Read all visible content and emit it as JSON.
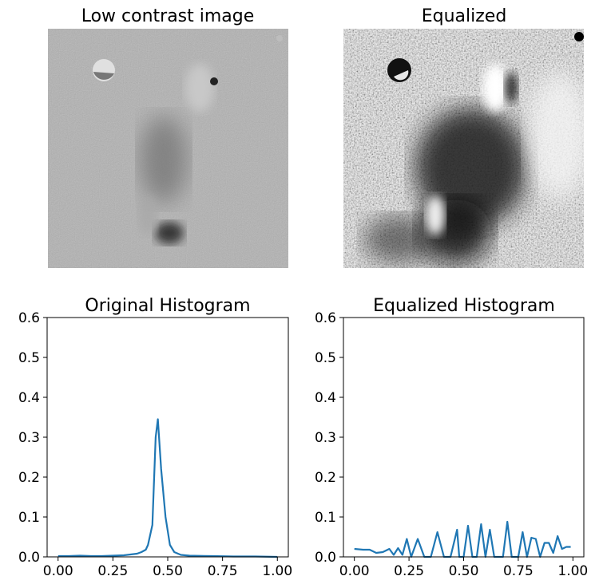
{
  "images": [
    {
      "title": "Low contrast image"
    },
    {
      "title": "Equalized"
    }
  ],
  "colors": {
    "line": "#1f77b4",
    "axis": "#000000",
    "background": "#ffffff"
  },
  "chart_data": [
    {
      "type": "line",
      "title": "Original Histogram",
      "xlabel": "",
      "ylabel": "",
      "xlim": [
        0.0,
        1.0
      ],
      "ylim": [
        0.0,
        0.6
      ],
      "xticks": [
        "0.00",
        "0.25",
        "0.50",
        "0.75",
        "1.00"
      ],
      "yticks": [
        "0.0",
        "0.1",
        "0.2",
        "0.3",
        "0.4",
        "0.5",
        "0.6"
      ],
      "grid": false,
      "x": [
        0.0,
        0.05,
        0.1,
        0.15,
        0.2,
        0.25,
        0.3,
        0.33,
        0.36,
        0.38,
        0.4,
        0.41,
        0.43,
        0.445,
        0.455,
        0.47,
        0.49,
        0.51,
        0.53,
        0.56,
        0.6,
        0.7,
        0.8,
        0.9,
        1.0
      ],
      "values": [
        0.002,
        0.002,
        0.003,
        0.002,
        0.002,
        0.003,
        0.004,
        0.006,
        0.008,
        0.012,
        0.018,
        0.03,
        0.08,
        0.3,
        0.345,
        0.22,
        0.1,
        0.03,
        0.012,
        0.005,
        0.003,
        0.002,
        0.001,
        0.001,
        0.0
      ]
    },
    {
      "type": "line",
      "title": "Equalized Histogram",
      "xlabel": "",
      "ylabel": "",
      "xlim": [
        0.0,
        1.0
      ],
      "ylim": [
        0.0,
        0.6
      ],
      "xticks": [
        "0.00",
        "0.25",
        "0.50",
        "0.75",
        "1.00"
      ],
      "yticks": [
        "0.0",
        "0.1",
        "0.2",
        "0.3",
        "0.4",
        "0.5",
        "0.6"
      ],
      "grid": false,
      "x": [
        0.0,
        0.04,
        0.07,
        0.1,
        0.13,
        0.16,
        0.18,
        0.2,
        0.22,
        0.24,
        0.26,
        0.29,
        0.32,
        0.35,
        0.38,
        0.41,
        0.44,
        0.47,
        0.48,
        0.5,
        0.52,
        0.54,
        0.56,
        0.58,
        0.6,
        0.62,
        0.64,
        0.66,
        0.68,
        0.7,
        0.72,
        0.75,
        0.77,
        0.79,
        0.81,
        0.83,
        0.85,
        0.87,
        0.89,
        0.91,
        0.93,
        0.95,
        0.97,
        0.99
      ],
      "values": [
        0.02,
        0.018,
        0.018,
        0.01,
        0.012,
        0.02,
        0.005,
        0.022,
        0.005,
        0.045,
        0.0,
        0.045,
        0.0,
        0.0,
        0.062,
        0.0,
        0.0,
        0.068,
        0.0,
        0.0,
        0.078,
        0.0,
        0.0,
        0.082,
        0.0,
        0.068,
        0.0,
        0.0,
        0.0,
        0.088,
        0.0,
        0.0,
        0.062,
        0.0,
        0.048,
        0.045,
        0.0,
        0.035,
        0.035,
        0.01,
        0.052,
        0.02,
        0.025,
        0.025
      ]
    }
  ]
}
